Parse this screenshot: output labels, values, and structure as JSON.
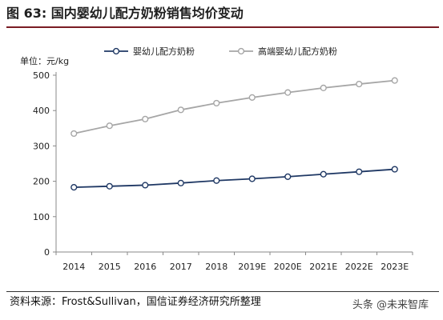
{
  "header": {
    "title": "图 63: 国内婴幼儿配方奶粉销售均价变动"
  },
  "footer": {
    "source": "资料来源：Frost&Sullivan，国信证券经济研究所整理"
  },
  "watermark": {
    "text": "头条 @未来智库"
  },
  "colors": {
    "title_rule": "#7a1c24",
    "series_infant": "#1f3864",
    "series_premium": "#a6a6a6"
  },
  "chart_data": {
    "type": "line",
    "title": "",
    "unit_label": "单位：元/kg",
    "xlabel": "",
    "ylabel": "",
    "categories": [
      "2014",
      "2015",
      "2016",
      "2017",
      "2018",
      "2019E",
      "2020E",
      "2021E",
      "2022E",
      "2023E"
    ],
    "ylim": [
      0,
      500
    ],
    "yticks": [
      0,
      100,
      200,
      300,
      400,
      500
    ],
    "grid": false,
    "legend_position": "top",
    "series": [
      {
        "name": "婴幼儿配方奶粉",
        "color": "#1f3864",
        "marker": "open-circle",
        "values": [
          183,
          186,
          189,
          195,
          202,
          207,
          213,
          220,
          227,
          234
        ]
      },
      {
        "name": "高端婴幼儿配方奶粉",
        "color": "#a6a6a6",
        "marker": "open-circle",
        "values": [
          335,
          357,
          376,
          402,
          421,
          437,
          451,
          464,
          475,
          485
        ]
      }
    ]
  }
}
